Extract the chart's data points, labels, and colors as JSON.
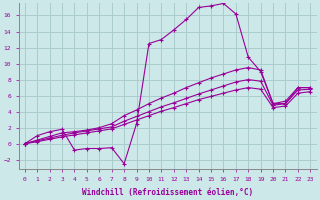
{
  "xlabel": "Windchill (Refroidissement éolien,°C)",
  "background_color": "#cce8e8",
  "grid_color": "#aacccc",
  "line_color": "#990099",
  "xlim": [
    -0.5,
    23.5
  ],
  "ylim": [
    -3.2,
    17.5
  ],
  "yticks": [
    -2,
    0,
    2,
    4,
    6,
    8,
    10,
    12,
    14,
    16
  ],
  "xticks": [
    0,
    1,
    2,
    3,
    4,
    5,
    6,
    7,
    8,
    9,
    10,
    11,
    12,
    13,
    14,
    15,
    16,
    17,
    18,
    19,
    20,
    21,
    22,
    23
  ],
  "line1_x": [
    0,
    1,
    2,
    3,
    4,
    5,
    6,
    7,
    8,
    9,
    10,
    11,
    12,
    13,
    14,
    15,
    16,
    17,
    18,
    19,
    20,
    21,
    22,
    23
  ],
  "line1_y": [
    0.0,
    1.0,
    1.5,
    1.8,
    -0.8,
    -0.6,
    -0.6,
    -0.5,
    -2.5,
    2.5,
    12.5,
    13.0,
    14.2,
    15.5,
    17.0,
    17.2,
    17.5,
    16.2,
    10.8,
    9.0,
    5.0,
    5.0,
    7.0,
    7.0
  ],
  "line2_x": [
    0,
    1,
    2,
    3,
    4,
    5,
    6,
    7,
    8,
    9,
    10,
    11,
    12,
    13,
    14,
    15,
    16,
    17,
    18,
    19,
    20,
    21,
    22,
    23
  ],
  "line2_y": [
    0.0,
    0.45,
    0.9,
    1.35,
    1.5,
    1.7,
    2.0,
    2.5,
    3.5,
    4.2,
    5.0,
    5.7,
    6.3,
    7.0,
    7.6,
    8.2,
    8.7,
    9.2,
    9.5,
    9.2,
    5.0,
    5.3,
    7.0,
    7.0
  ],
  "line3_x": [
    0,
    1,
    2,
    3,
    4,
    5,
    6,
    7,
    8,
    9,
    10,
    11,
    12,
    13,
    14,
    15,
    16,
    17,
    18,
    19,
    20,
    21,
    22,
    23
  ],
  "line3_y": [
    0.0,
    0.35,
    0.7,
    1.05,
    1.35,
    1.6,
    1.85,
    2.1,
    2.8,
    3.4,
    4.0,
    4.6,
    5.1,
    5.65,
    6.2,
    6.7,
    7.2,
    7.7,
    8.0,
    7.8,
    4.8,
    5.0,
    6.7,
    6.8
  ],
  "line4_x": [
    0,
    1,
    2,
    3,
    4,
    5,
    6,
    7,
    8,
    9,
    10,
    11,
    12,
    13,
    14,
    15,
    16,
    17,
    18,
    19,
    20,
    21,
    22,
    23
  ],
  "line4_y": [
    0.0,
    0.25,
    0.55,
    0.85,
    1.1,
    1.35,
    1.6,
    1.85,
    2.4,
    2.95,
    3.5,
    4.05,
    4.5,
    5.0,
    5.5,
    5.9,
    6.3,
    6.7,
    7.0,
    6.8,
    4.5,
    4.7,
    6.3,
    6.5
  ]
}
